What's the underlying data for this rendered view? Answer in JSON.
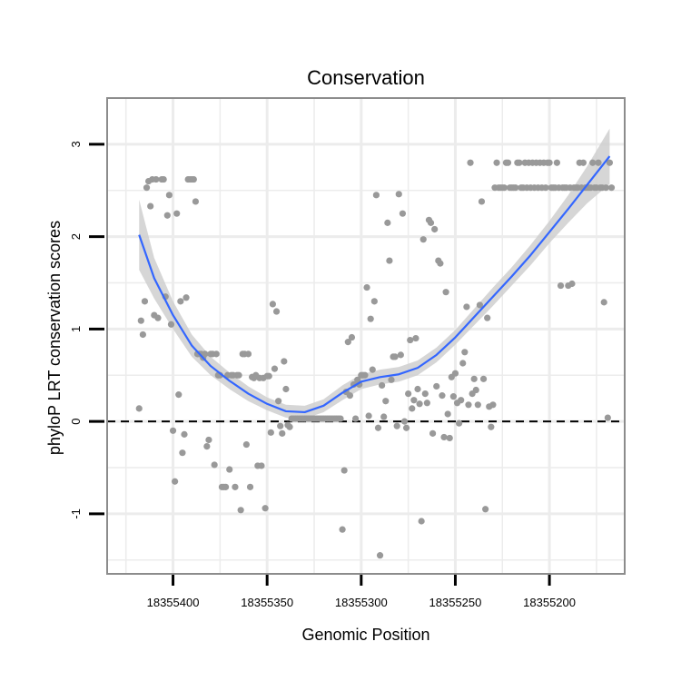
{
  "chart_data": {
    "type": "scatter",
    "title": "Conservation",
    "xlabel": "Genomic Position",
    "ylabel": "phyloP LRT conservation scores",
    "x_reversed": true,
    "xlim": [
      18355160,
      18355435
    ],
    "ylim": [
      -1.65,
      3.5
    ],
    "x_ticks": [
      18355400,
      18355350,
      18355300,
      18355250,
      18355200
    ],
    "x_tick_labels": [
      "18355400",
      "18355350",
      "18355300",
      "18355250",
      "18355200"
    ],
    "y_ticks": [
      -1,
      0,
      1,
      2,
      3
    ],
    "y_tick_labels": [
      "-1",
      "0",
      "1",
      "2",
      "3"
    ],
    "reference_line": {
      "y": 0,
      "style": "dashed"
    },
    "points": [
      [
        18355418,
        0.14
      ],
      [
        18355417,
        1.09
      ],
      [
        18355416,
        0.94
      ],
      [
        18355415,
        1.3
      ],
      [
        18355414,
        2.53
      ],
      [
        18355413,
        2.6
      ],
      [
        18355412,
        2.33
      ],
      [
        18355411,
        2.62
      ],
      [
        18355410,
        1.15
      ],
      [
        18355409,
        2.62
      ],
      [
        18355408,
        1.12
      ],
      [
        18355406,
        2.62
      ],
      [
        18355405,
        2.62
      ],
      [
        18355404,
        1.35
      ],
      [
        18355403,
        2.23
      ],
      [
        18355402,
        2.45
      ],
      [
        18355401,
        1.05
      ],
      [
        18355400,
        -0.1
      ],
      [
        18355399,
        -0.65
      ],
      [
        18355398,
        2.25
      ],
      [
        18355397,
        0.29
      ],
      [
        18355396,
        1.3
      ],
      [
        18355395,
        -0.34
      ],
      [
        18355394,
        -0.14
      ],
      [
        18355393,
        1.34
      ],
      [
        18355392,
        2.62
      ],
      [
        18355391,
        2.62
      ],
      [
        18355390,
        2.62
      ],
      [
        18355389,
        2.62
      ],
      [
        18355388,
        2.38
      ],
      [
        18355387,
        0.73
      ],
      [
        18355386,
        0.73
      ],
      [
        18355385,
        0.73
      ],
      [
        18355384,
        0.69
      ],
      [
        18355383,
        0.73
      ],
      [
        18355382,
        -0.27
      ],
      [
        18355381,
        -0.2
      ],
      [
        18355380,
        0.73
      ],
      [
        18355379,
        0.73
      ],
      [
        18355378,
        -0.47
      ],
      [
        18355377,
        0.73
      ],
      [
        18355376,
        0.5
      ],
      [
        18355375,
        0.5
      ],
      [
        18355374,
        -0.71
      ],
      [
        18355373,
        -0.71
      ],
      [
        18355372,
        -0.71
      ],
      [
        18355371,
        0.5
      ],
      [
        18355370,
        -0.52
      ],
      [
        18355369,
        0.5
      ],
      [
        18355368,
        0.5
      ],
      [
        18355367,
        -0.71
      ],
      [
        18355366,
        0.5
      ],
      [
        18355365,
        0.5
      ],
      [
        18355364,
        -0.96
      ],
      [
        18355363,
        0.73
      ],
      [
        18355362,
        0.73
      ],
      [
        18355361,
        -0.25
      ],
      [
        18355360,
        0.73
      ],
      [
        18355359,
        -0.71
      ],
      [
        18355358,
        0.48
      ],
      [
        18355357,
        0.47
      ],
      [
        18355356,
        0.5
      ],
      [
        18355355,
        -0.48
      ],
      [
        18355354,
        0.47
      ],
      [
        18355353,
        -0.48
      ],
      [
        18355352,
        0.47
      ],
      [
        18355351,
        -0.94
      ],
      [
        18355350,
        0.49
      ],
      [
        18355349,
        0.49
      ],
      [
        18355348,
        -0.12
      ],
      [
        18355347,
        1.27
      ],
      [
        18355346,
        0.57
      ],
      [
        18355345,
        1.19
      ],
      [
        18355344,
        0.22
      ],
      [
        18355343,
        -0.05
      ],
      [
        18355342,
        -0.13
      ],
      [
        18355341,
        0.65
      ],
      [
        18355340,
        0.35
      ],
      [
        18355339,
        -0.04
      ],
      [
        18355338,
        -0.06
      ],
      [
        18355337,
        0.03
      ],
      [
        18355336,
        0.03
      ],
      [
        18355335,
        0.03
      ],
      [
        18355334,
        0.03
      ],
      [
        18355333,
        0.03
      ],
      [
        18355332,
        0.03
      ],
      [
        18355331,
        0.03
      ],
      [
        18355330,
        0.03
      ],
      [
        18355329,
        0.03
      ],
      [
        18355328,
        0.03
      ],
      [
        18355327,
        0.03
      ],
      [
        18355326,
        0.03
      ],
      [
        18355325,
        0.03
      ],
      [
        18355324,
        0.03
      ],
      [
        18355323,
        0.03
      ],
      [
        18355322,
        0.03
      ],
      [
        18355321,
        0.03
      ],
      [
        18355320,
        0.03
      ],
      [
        18355319,
        0.03
      ],
      [
        18355318,
        0.03
      ],
      [
        18355317,
        0.03
      ],
      [
        18355316,
        0.03
      ],
      [
        18355315,
        0.03
      ],
      [
        18355314,
        0.03
      ],
      [
        18355313,
        0.03
      ],
      [
        18355312,
        0.03
      ],
      [
        18355311,
        0.03
      ],
      [
        18355310,
        -1.17
      ],
      [
        18355309,
        -0.53
      ],
      [
        18355308,
        0.32
      ],
      [
        18355307,
        0.86
      ],
      [
        18355306,
        0.28
      ],
      [
        18355305,
        0.91
      ],
      [
        18355304,
        0.4
      ],
      [
        18355303,
        0.03
      ],
      [
        18355302,
        0.45
      ],
      [
        18355301,
        0.4
      ],
      [
        18355300,
        0.5
      ],
      [
        18355299,
        0.5
      ],
      [
        18355298,
        0.5
      ],
      [
        18355297,
        1.45
      ],
      [
        18355296,
        0.06
      ],
      [
        18355295,
        1.11
      ],
      [
        18355294,
        0.56
      ],
      [
        18355293,
        1.3
      ],
      [
        18355292,
        2.45
      ],
      [
        18355291,
        -0.07
      ],
      [
        18355290,
        -1.45
      ],
      [
        18355289,
        0.39
      ],
      [
        18355288,
        0.05
      ],
      [
        18355287,
        0.22
      ],
      [
        18355286,
        2.15
      ],
      [
        18355285,
        1.74
      ],
      [
        18355284,
        0.45
      ],
      [
        18355283,
        0.7
      ],
      [
        18355282,
        0.7
      ],
      [
        18355281,
        -0.05
      ],
      [
        18355280,
        2.46
      ],
      [
        18355279,
        0.72
      ],
      [
        18355278,
        2.25
      ],
      [
        18355277,
        0.0
      ],
      [
        18355276,
        -0.07
      ],
      [
        18355275,
        0.3
      ],
      [
        18355274,
        0.88
      ],
      [
        18355273,
        0.14
      ],
      [
        18355272,
        0.23
      ],
      [
        18355271,
        0.9
      ],
      [
        18355270,
        0.35
      ],
      [
        18355269,
        0.19
      ],
      [
        18355268,
        -1.08
      ],
      [
        18355267,
        1.97
      ],
      [
        18355266,
        0.3
      ],
      [
        18355265,
        0.2
      ],
      [
        18355264,
        2.18
      ],
      [
        18355263,
        2.15
      ],
      [
        18355262,
        -0.13
      ],
      [
        18355261,
        2.08
      ],
      [
        18355260,
        0.38
      ],
      [
        18355259,
        1.74
      ],
      [
        18355258,
        1.71
      ],
      [
        18355257,
        0.28
      ],
      [
        18355256,
        -0.17
      ],
      [
        18355255,
        1.4
      ],
      [
        18355254,
        0.08
      ],
      [
        18355253,
        -0.18
      ],
      [
        18355252,
        0.48
      ],
      [
        18355251,
        0.27
      ],
      [
        18355250,
        0.52
      ],
      [
        18355249,
        0.2
      ],
      [
        18355248,
        -0.02
      ],
      [
        18355247,
        0.23
      ],
      [
        18355246,
        0.63
      ],
      [
        18355245,
        0.75
      ],
      [
        18355244,
        1.24
      ],
      [
        18355243,
        0.18
      ],
      [
        18355242,
        2.8
      ],
      [
        18355241,
        0.3
      ],
      [
        18355240,
        0.46
      ],
      [
        18355239,
        0.34
      ],
      [
        18355238,
        0.18
      ],
      [
        18355237,
        1.26
      ],
      [
        18355236,
        2.38
      ],
      [
        18355235,
        0.46
      ],
      [
        18355234,
        -0.95
      ],
      [
        18355233,
        1.12
      ],
      [
        18355232,
        0.16
      ],
      [
        18355231,
        -0.06
      ],
      [
        18355230,
        0.18
      ],
      [
        18355229,
        2.53
      ],
      [
        18355228,
        2.8
      ],
      [
        18355227,
        2.53
      ],
      [
        18355226,
        2.53
      ],
      [
        18355225,
        2.53
      ],
      [
        18355224,
        2.53
      ],
      [
        18355223,
        2.8
      ],
      [
        18355222,
        2.8
      ],
      [
        18355221,
        2.53
      ],
      [
        18355220,
        2.53
      ],
      [
        18355219,
        2.53
      ],
      [
        18355218,
        2.53
      ],
      [
        18355217,
        2.8
      ],
      [
        18355216,
        2.8
      ],
      [
        18355215,
        2.53
      ],
      [
        18355214,
        2.53
      ],
      [
        18355213,
        2.8
      ],
      [
        18355212,
        2.53
      ],
      [
        18355211,
        2.8
      ],
      [
        18355210,
        2.53
      ],
      [
        18355209,
        2.8
      ],
      [
        18355208,
        2.53
      ],
      [
        18355207,
        2.8
      ],
      [
        18355206,
        2.53
      ],
      [
        18355205,
        2.8
      ],
      [
        18355204,
        2.53
      ],
      [
        18355203,
        2.8
      ],
      [
        18355202,
        2.53
      ],
      [
        18355201,
        2.8
      ],
      [
        18355200,
        2.8
      ],
      [
        18355199,
        2.53
      ],
      [
        18355198,
        2.53
      ],
      [
        18355197,
        2.53
      ],
      [
        18355196,
        2.8
      ],
      [
        18355195,
        2.53
      ],
      [
        18355194,
        1.47
      ],
      [
        18355193,
        2.53
      ],
      [
        18355192,
        2.53
      ],
      [
        18355191,
        2.53
      ],
      [
        18355190,
        1.47
      ],
      [
        18355189,
        2.53
      ],
      [
        18355188,
        1.49
      ],
      [
        18355187,
        2.53
      ],
      [
        18355186,
        2.53
      ],
      [
        18355185,
        2.53
      ],
      [
        18355184,
        2.8
      ],
      [
        18355183,
        2.53
      ],
      [
        18355182,
        2.8
      ],
      [
        18355181,
        2.53
      ],
      [
        18355180,
        2.53
      ],
      [
        18355179,
        2.53
      ],
      [
        18355178,
        2.53
      ],
      [
        18355177,
        2.8
      ],
      [
        18355176,
        2.53
      ],
      [
        18355175,
        2.53
      ],
      [
        18355174,
        2.8
      ],
      [
        18355173,
        2.53
      ],
      [
        18355172,
        2.53
      ],
      [
        18355171,
        1.29
      ],
      [
        18355170,
        2.53
      ],
      [
        18355169,
        0.04
      ],
      [
        18355168,
        2.8
      ],
      [
        18355167,
        2.53
      ]
    ],
    "smooth": {
      "x": [
        18355418,
        18355410,
        18355400,
        18355390,
        18355380,
        18355370,
        18355360,
        18355350,
        18355340,
        18355330,
        18355320,
        18355310,
        18355300,
        18355290,
        18355280,
        18355270,
        18355260,
        18355250,
        18355240,
        18355230,
        18355220,
        18355210,
        18355200,
        18355190,
        18355180,
        18355168
      ],
      "y": [
        2.02,
        1.55,
        1.15,
        0.82,
        0.6,
        0.44,
        0.3,
        0.19,
        0.11,
        0.1,
        0.17,
        0.31,
        0.43,
        0.48,
        0.51,
        0.58,
        0.72,
        0.91,
        1.13,
        1.35,
        1.57,
        1.8,
        2.05,
        2.3,
        2.56,
        2.87
      ],
      "band_halfwidth": [
        0.38,
        0.22,
        0.15,
        0.12,
        0.1,
        0.09,
        0.08,
        0.07,
        0.07,
        0.07,
        0.07,
        0.08,
        0.08,
        0.08,
        0.08,
        0.08,
        0.08,
        0.08,
        0.09,
        0.1,
        0.1,
        0.11,
        0.12,
        0.15,
        0.2,
        0.3
      ]
    },
    "colors": {
      "points": "#999999",
      "smooth_line": "#3366ff",
      "band": "#cfcfcf",
      "grid": "#ececec",
      "panel_border": "#8c8c8c",
      "reference_line": "#000000",
      "ticks": "#000000"
    }
  }
}
